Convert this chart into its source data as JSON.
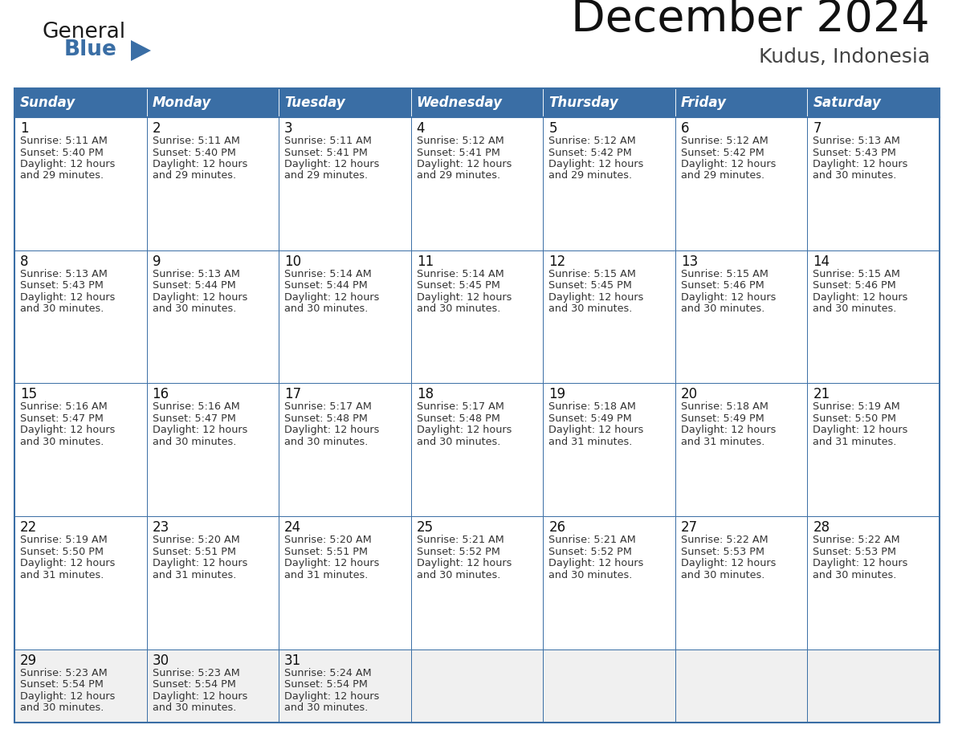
{
  "title": "December 2024",
  "subtitle": "Kudus, Indonesia",
  "header_color": "#3a6ea5",
  "header_text_color": "#ffffff",
  "days_of_week": [
    "Sunday",
    "Monday",
    "Tuesday",
    "Wednesday",
    "Thursday",
    "Friday",
    "Saturday"
  ],
  "cell_bg_white": "#ffffff",
  "cell_bg_gray": "#f0f0f0",
  "border_color": "#3a6ea5",
  "text_color": "#333333",
  "day_num_color": "#111111",
  "calendar": [
    [
      {
        "day": 1,
        "sunrise": "5:11 AM",
        "sunset": "5:40 PM",
        "daylight_h": "12 hours",
        "daylight_m": "and 29 minutes."
      },
      {
        "day": 2,
        "sunrise": "5:11 AM",
        "sunset": "5:40 PM",
        "daylight_h": "12 hours",
        "daylight_m": "and 29 minutes."
      },
      {
        "day": 3,
        "sunrise": "5:11 AM",
        "sunset": "5:41 PM",
        "daylight_h": "12 hours",
        "daylight_m": "and 29 minutes."
      },
      {
        "day": 4,
        "sunrise": "5:12 AM",
        "sunset": "5:41 PM",
        "daylight_h": "12 hours",
        "daylight_m": "and 29 minutes."
      },
      {
        "day": 5,
        "sunrise": "5:12 AM",
        "sunset": "5:42 PM",
        "daylight_h": "12 hours",
        "daylight_m": "and 29 minutes."
      },
      {
        "day": 6,
        "sunrise": "5:12 AM",
        "sunset": "5:42 PM",
        "daylight_h": "12 hours",
        "daylight_m": "and 29 minutes."
      },
      {
        "day": 7,
        "sunrise": "5:13 AM",
        "sunset": "5:43 PM",
        "daylight_h": "12 hours",
        "daylight_m": "and 30 minutes."
      }
    ],
    [
      {
        "day": 8,
        "sunrise": "5:13 AM",
        "sunset": "5:43 PM",
        "daylight_h": "12 hours",
        "daylight_m": "and 30 minutes."
      },
      {
        "day": 9,
        "sunrise": "5:13 AM",
        "sunset": "5:44 PM",
        "daylight_h": "12 hours",
        "daylight_m": "and 30 minutes."
      },
      {
        "day": 10,
        "sunrise": "5:14 AM",
        "sunset": "5:44 PM",
        "daylight_h": "12 hours",
        "daylight_m": "and 30 minutes."
      },
      {
        "day": 11,
        "sunrise": "5:14 AM",
        "sunset": "5:45 PM",
        "daylight_h": "12 hours",
        "daylight_m": "and 30 minutes."
      },
      {
        "day": 12,
        "sunrise": "5:15 AM",
        "sunset": "5:45 PM",
        "daylight_h": "12 hours",
        "daylight_m": "and 30 minutes."
      },
      {
        "day": 13,
        "sunrise": "5:15 AM",
        "sunset": "5:46 PM",
        "daylight_h": "12 hours",
        "daylight_m": "and 30 minutes."
      },
      {
        "day": 14,
        "sunrise": "5:15 AM",
        "sunset": "5:46 PM",
        "daylight_h": "12 hours",
        "daylight_m": "and 30 minutes."
      }
    ],
    [
      {
        "day": 15,
        "sunrise": "5:16 AM",
        "sunset": "5:47 PM",
        "daylight_h": "12 hours",
        "daylight_m": "and 30 minutes."
      },
      {
        "day": 16,
        "sunrise": "5:16 AM",
        "sunset": "5:47 PM",
        "daylight_h": "12 hours",
        "daylight_m": "and 30 minutes."
      },
      {
        "day": 17,
        "sunrise": "5:17 AM",
        "sunset": "5:48 PM",
        "daylight_h": "12 hours",
        "daylight_m": "and 30 minutes."
      },
      {
        "day": 18,
        "sunrise": "5:17 AM",
        "sunset": "5:48 PM",
        "daylight_h": "12 hours",
        "daylight_m": "and 30 minutes."
      },
      {
        "day": 19,
        "sunrise": "5:18 AM",
        "sunset": "5:49 PM",
        "daylight_h": "12 hours",
        "daylight_m": "and 31 minutes."
      },
      {
        "day": 20,
        "sunrise": "5:18 AM",
        "sunset": "5:49 PM",
        "daylight_h": "12 hours",
        "daylight_m": "and 31 minutes."
      },
      {
        "day": 21,
        "sunrise": "5:19 AM",
        "sunset": "5:50 PM",
        "daylight_h": "12 hours",
        "daylight_m": "and 31 minutes."
      }
    ],
    [
      {
        "day": 22,
        "sunrise": "5:19 AM",
        "sunset": "5:50 PM",
        "daylight_h": "12 hours",
        "daylight_m": "and 31 minutes."
      },
      {
        "day": 23,
        "sunrise": "5:20 AM",
        "sunset": "5:51 PM",
        "daylight_h": "12 hours",
        "daylight_m": "and 31 minutes."
      },
      {
        "day": 24,
        "sunrise": "5:20 AM",
        "sunset": "5:51 PM",
        "daylight_h": "12 hours",
        "daylight_m": "and 31 minutes."
      },
      {
        "day": 25,
        "sunrise": "5:21 AM",
        "sunset": "5:52 PM",
        "daylight_h": "12 hours",
        "daylight_m": "and 30 minutes."
      },
      {
        "day": 26,
        "sunrise": "5:21 AM",
        "sunset": "5:52 PM",
        "daylight_h": "12 hours",
        "daylight_m": "and 30 minutes."
      },
      {
        "day": 27,
        "sunrise": "5:22 AM",
        "sunset": "5:53 PM",
        "daylight_h": "12 hours",
        "daylight_m": "and 30 minutes."
      },
      {
        "day": 28,
        "sunrise": "5:22 AM",
        "sunset": "5:53 PM",
        "daylight_h": "12 hours",
        "daylight_m": "and 30 minutes."
      }
    ],
    [
      {
        "day": 29,
        "sunrise": "5:23 AM",
        "sunset": "5:54 PM",
        "daylight_h": "12 hours",
        "daylight_m": "and 30 minutes."
      },
      {
        "day": 30,
        "sunrise": "5:23 AM",
        "sunset": "5:54 PM",
        "daylight_h": "12 hours",
        "daylight_m": "and 30 minutes."
      },
      {
        "day": 31,
        "sunrise": "5:24 AM",
        "sunset": "5:54 PM",
        "daylight_h": "12 hours",
        "daylight_m": "and 30 minutes."
      },
      null,
      null,
      null,
      null
    ]
  ]
}
